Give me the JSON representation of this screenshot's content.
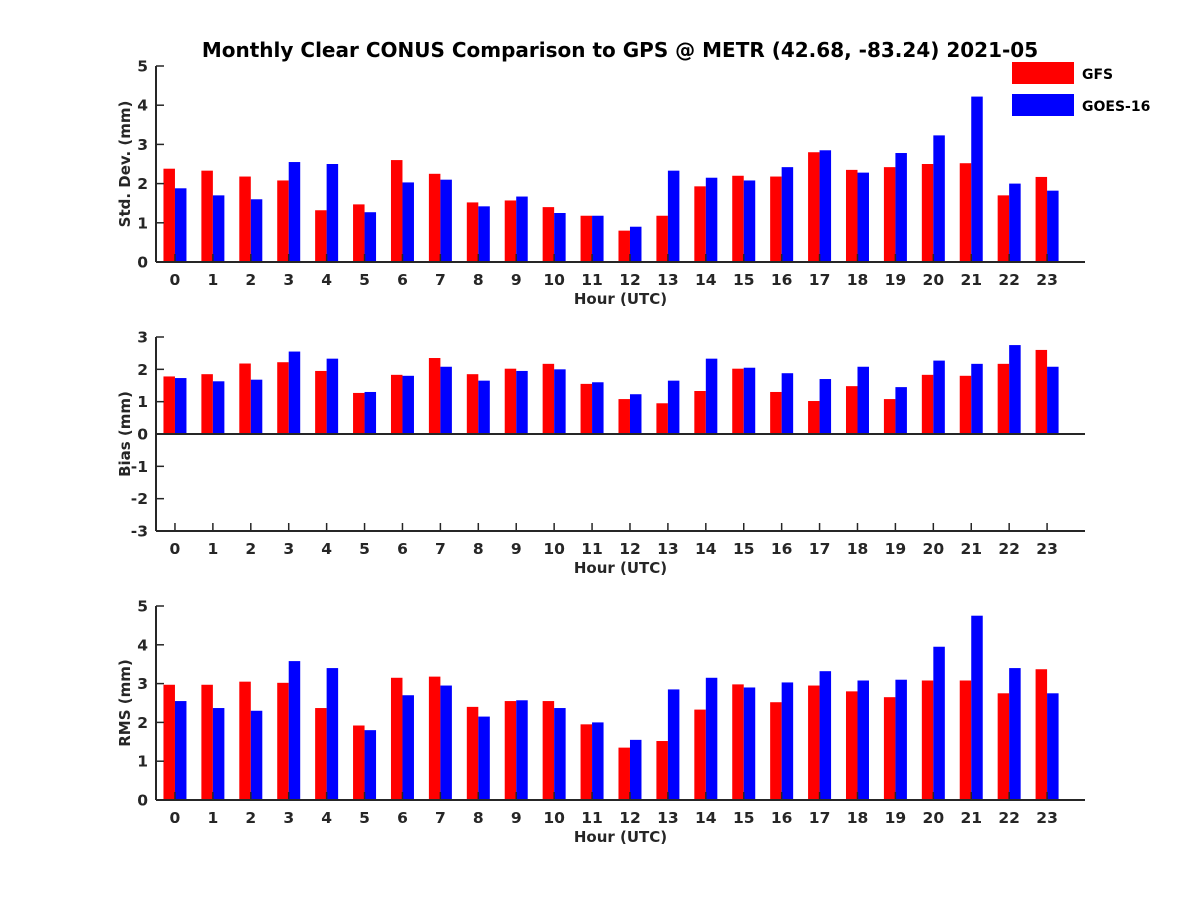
{
  "figure": {
    "title": "Monthly Clear CONUS Comparison to GPS @ METR (42.68, -83.24) 2021-05",
    "legend": {
      "placement": "top-right",
      "items": [
        {
          "label": "GFS",
          "color": "#ff0000"
        },
        {
          "label": "GOES-16",
          "color": "#0000ff"
        }
      ]
    }
  },
  "chart_data": [
    {
      "type": "bar",
      "xlabel": "Hour (UTC)",
      "ylabel": "Std. Dev. (mm)",
      "ylim": [
        0,
        5
      ],
      "yticks": [
        0,
        1,
        2,
        3,
        4,
        5
      ],
      "grid": false,
      "categories": [
        "0",
        "1",
        "2",
        "3",
        "4",
        "5",
        "6",
        "7",
        "8",
        "9",
        "10",
        "11",
        "12",
        "13",
        "14",
        "15",
        "16",
        "17",
        "18",
        "19",
        "20",
        "21",
        "22",
        "23"
      ],
      "series": [
        {
          "name": "GFS",
          "color": "#ff0000",
          "values": [
            2.38,
            2.33,
            2.18,
            2.08,
            1.32,
            1.47,
            2.6,
            2.25,
            1.52,
            1.57,
            1.4,
            1.18,
            0.8,
            1.18,
            1.93,
            2.2,
            2.18,
            2.8,
            2.35,
            2.42,
            2.5,
            2.52,
            1.7,
            2.17
          ]
        },
        {
          "name": "GOES-16",
          "color": "#0000ff",
          "values": [
            1.88,
            1.7,
            1.6,
            2.55,
            2.5,
            1.27,
            2.03,
            2.1,
            1.42,
            1.67,
            1.25,
            1.18,
            0.9,
            2.33,
            2.15,
            2.08,
            2.42,
            2.85,
            2.28,
            2.78,
            3.23,
            4.22,
            2.0,
            1.82
          ]
        }
      ]
    },
    {
      "type": "bar",
      "xlabel": "Hour (UTC)",
      "ylabel": "Bias (mm)",
      "ylim": [
        -3,
        3
      ],
      "yticks": [
        -3,
        -2,
        -1,
        0,
        1,
        2,
        3
      ],
      "grid": false,
      "categories": [
        "0",
        "1",
        "2",
        "3",
        "4",
        "5",
        "6",
        "7",
        "8",
        "9",
        "10",
        "11",
        "12",
        "13",
        "14",
        "15",
        "16",
        "17",
        "18",
        "19",
        "20",
        "21",
        "22",
        "23"
      ],
      "series": [
        {
          "name": "GFS",
          "color": "#ff0000",
          "values": [
            1.78,
            1.85,
            2.18,
            2.22,
            1.95,
            1.27,
            1.83,
            2.35,
            1.85,
            2.02,
            2.17,
            1.55,
            1.08,
            0.95,
            1.33,
            2.02,
            1.3,
            1.02,
            1.48,
            1.08,
            1.83,
            1.8,
            2.17,
            2.6
          ]
        },
        {
          "name": "GOES-16",
          "color": "#0000ff",
          "values": [
            1.73,
            1.63,
            1.68,
            2.55,
            2.33,
            1.3,
            1.8,
            2.08,
            1.65,
            1.95,
            2.0,
            1.6,
            1.23,
            1.65,
            2.33,
            2.05,
            1.88,
            1.7,
            2.08,
            1.45,
            2.27,
            2.17,
            2.75,
            2.08
          ]
        }
      ]
    },
    {
      "type": "bar",
      "xlabel": "Hour (UTC)",
      "ylabel": "RMS (mm)",
      "ylim": [
        0,
        5
      ],
      "yticks": [
        0,
        1,
        2,
        3,
        4,
        5
      ],
      "grid": false,
      "categories": [
        "0",
        "1",
        "2",
        "3",
        "4",
        "5",
        "6",
        "7",
        "8",
        "9",
        "10",
        "11",
        "12",
        "13",
        "14",
        "15",
        "16",
        "17",
        "18",
        "19",
        "20",
        "21",
        "22",
        "23"
      ],
      "series": [
        {
          "name": "GFS",
          "color": "#ff0000",
          "values": [
            2.97,
            2.97,
            3.05,
            3.02,
            2.37,
            1.92,
            3.15,
            3.18,
            2.4,
            2.55,
            2.55,
            1.95,
            1.35,
            1.52,
            2.33,
            2.98,
            2.52,
            2.95,
            2.8,
            2.65,
            3.08,
            3.08,
            2.75,
            3.37
          ]
        },
        {
          "name": "GOES-16",
          "color": "#0000ff",
          "values": [
            2.55,
            2.37,
            2.3,
            3.58,
            3.4,
            1.8,
            2.7,
            2.95,
            2.15,
            2.57,
            2.37,
            2.0,
            1.55,
            2.85,
            3.15,
            2.9,
            3.03,
            3.32,
            3.08,
            3.1,
            3.95,
            4.75,
            3.4,
            2.75
          ]
        }
      ]
    }
  ]
}
